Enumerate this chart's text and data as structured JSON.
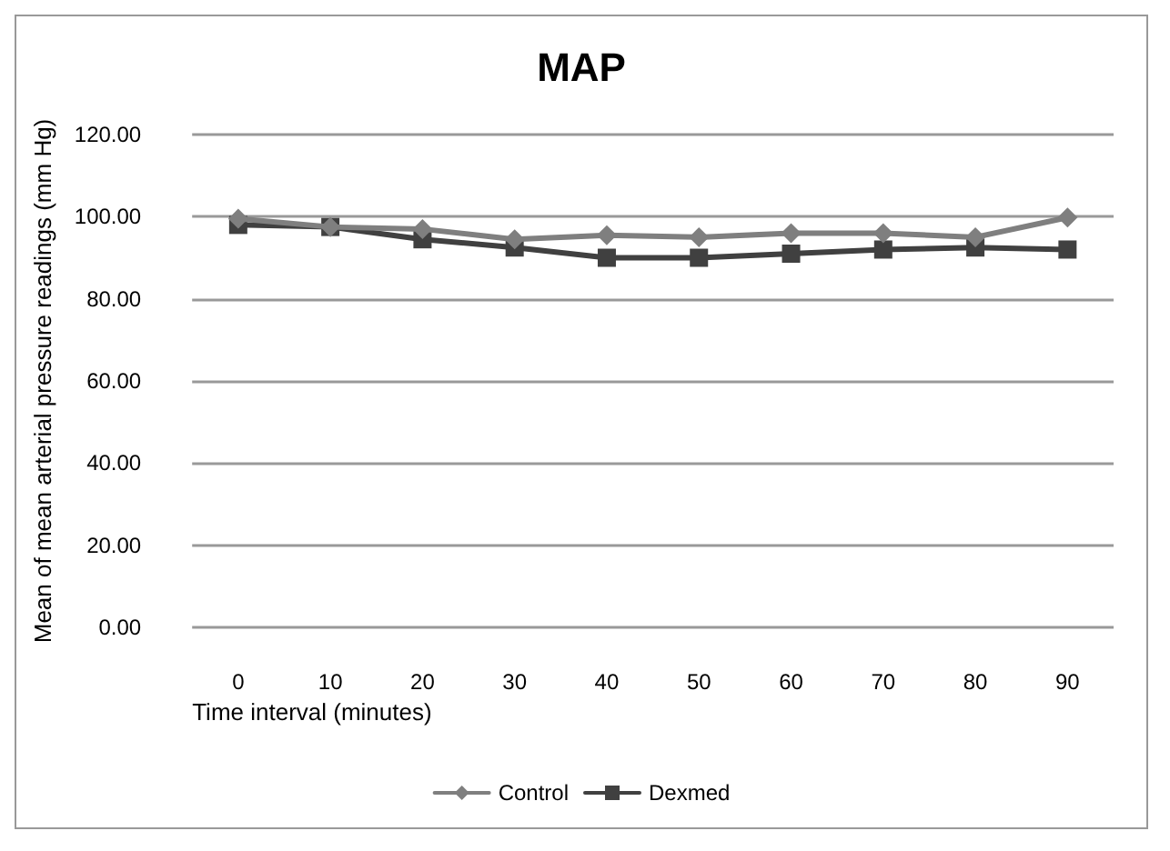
{
  "chart_data": {
    "type": "line",
    "title": "MAP",
    "xlabel": "Time interval (minutes)",
    "ylabel": "Mean of mean arterial pressure readings (mm Hg)",
    "categories": [
      "0",
      "10",
      "20",
      "30",
      "40",
      "50",
      "60",
      "70",
      "80",
      "90"
    ],
    "series": [
      {
        "name": "Control",
        "color": "#7f7f7f",
        "marker": "diamond",
        "values": [
          99.5,
          97.5,
          97,
          94.5,
          95.5,
          95,
          96,
          96,
          95,
          99.8
        ]
      },
      {
        "name": "Dexmed",
        "color": "#404040",
        "marker": "square",
        "values": [
          98,
          97.5,
          94.5,
          92.5,
          90,
          90,
          91,
          92,
          92.5,
          92
        ]
      }
    ],
    "ylim": [
      0,
      120
    ],
    "yticks": [
      {
        "value": 0,
        "label": "0.00"
      },
      {
        "value": 20,
        "label": "20.00"
      },
      {
        "value": 40,
        "label": "40.00"
      },
      {
        "value": 60,
        "label": "60.00"
      },
      {
        "value": 80,
        "label": "80.00"
      },
      {
        "value": 100,
        "label": "100.00"
      },
      {
        "value": 120,
        "label": "120.00"
      }
    ],
    "grid": "y",
    "legend": "bottom",
    "line_style": "solid"
  }
}
